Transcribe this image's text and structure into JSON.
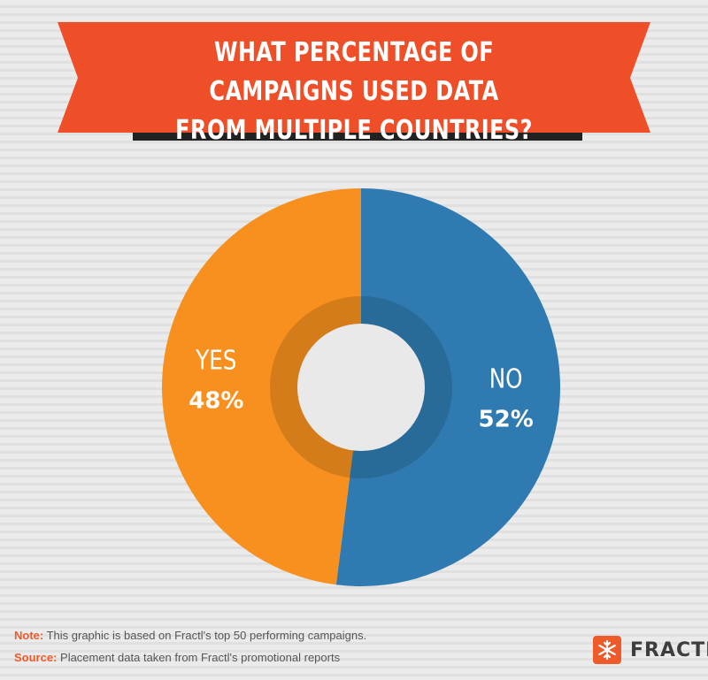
{
  "header": {
    "title_line1": "WHAT PERCENTAGE OF CAMPAIGNS USED DATA",
    "title_line2": "FROM MULTIPLE COUNTRIES?"
  },
  "chart_data": {
    "type": "pie",
    "title": "WHAT PERCENTAGE OF CAMPAIGNS USED DATA FROM MULTIPLE COUNTRIES?",
    "slices": [
      {
        "label": "NO",
        "value": 52,
        "display": "52%",
        "color": "#2f7bb1"
      },
      {
        "label": "YES",
        "value": 48,
        "display": "48%",
        "color": "#f7901e"
      }
    ]
  },
  "footer": {
    "note_key": "Note:",
    "note_text": " This graphic is based on Fractl's top 50 performing campaigns.",
    "source_key": "Source:",
    "source_text": " Placement data taken from Fractl's promotional reports"
  },
  "brand": {
    "name": "FRACTL",
    "icon": "snowflake-icon",
    "color": "#ef5a2a"
  }
}
